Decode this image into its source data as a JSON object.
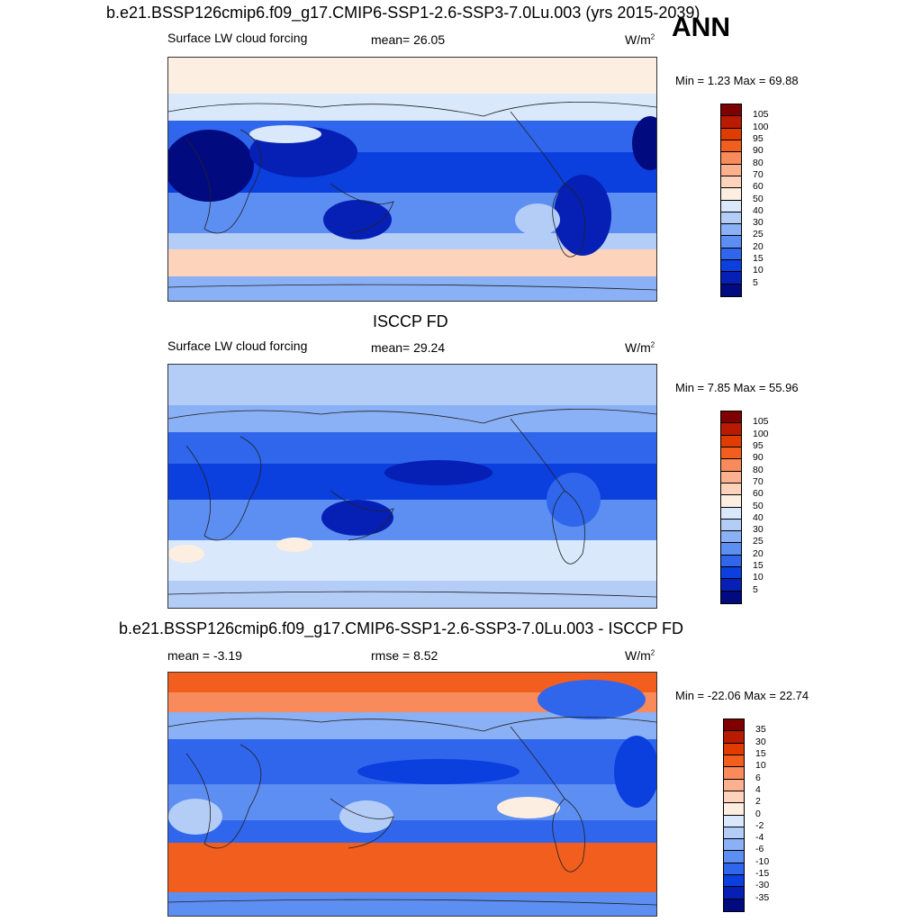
{
  "header": {
    "title": "b.e21.BSSP126cmip6.f09_g17.CMIP6-SSP1-2.6-SSP3-7.0Lu.003 (yrs 2015-2039)",
    "season": "ANN"
  },
  "panels": [
    {
      "title": "",
      "left_label": "Surface LW cloud forcing",
      "center_label": "mean=  26.05",
      "units": "W/m",
      "units_exp": "2",
      "minmax": "Min =   1.23 Max =  69.88"
    },
    {
      "title": "ISCCP FD",
      "left_label": "Surface LW cloud forcing",
      "center_label": "mean=  29.24",
      "units": "W/m",
      "units_exp": "2",
      "minmax": "Min =   7.85 Max =  55.96"
    },
    {
      "title": "b.e21.BSSP126cmip6.f09_g17.CMIP6-SSP1-2.6-SSP3-7.0Lu.003 - ISCCP FD",
      "left_label": "mean =  -3.19",
      "center_label": "rmse =   8.52",
      "units": "W/m",
      "units_exp": "2",
      "minmax": "Min = -22.06 Max =  22.74"
    }
  ],
  "colorbars": {
    "abs": {
      "labels": [
        "105",
        "100",
        "95",
        "90",
        "80",
        "70",
        "60",
        "50",
        "40",
        "30",
        "25",
        "20",
        "15",
        "10",
        "5"
      ],
      "colors": [
        "#7f0000",
        "#b81b00",
        "#e03c00",
        "#f25e1e",
        "#f88a5c",
        "#fbb08f",
        "#fdd3bb",
        "#fdeee2",
        "#d9e8fb",
        "#b4cdf7",
        "#8ab0f5",
        "#5d8ef2",
        "#2f66ec",
        "#0b3fde",
        "#0620b5",
        "#020a80"
      ]
    },
    "diff": {
      "labels": [
        "35",
        "30",
        "15",
        "10",
        "6",
        "4",
        "2",
        "0",
        "-2",
        "-4",
        "-6",
        "-10",
        "-15",
        "-30",
        "-35"
      ],
      "colors": [
        "#7f0000",
        "#b81b00",
        "#e03c00",
        "#f25e1e",
        "#f88a5c",
        "#fbb08f",
        "#fdd3bb",
        "#fdeee2",
        "#d9e8fb",
        "#b4cdf7",
        "#8ab0f5",
        "#5d8ef2",
        "#2f66ec",
        "#0b3fde",
        "#0620b5",
        "#020a80"
      ]
    }
  }
}
